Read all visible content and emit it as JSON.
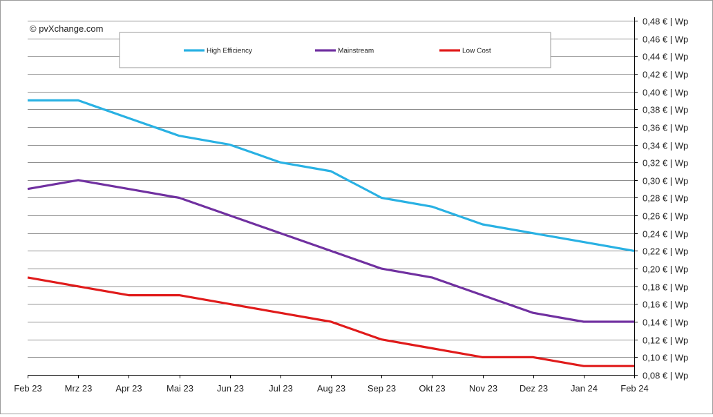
{
  "copyright": "© pvXchange.com",
  "chart_data": {
    "type": "line",
    "title": "",
    "xlabel": "",
    "ylabel": "",
    "categories": [
      "Feb 23",
      "Mrz 23",
      "Apr 23",
      "Mai 23",
      "Jun 23",
      "Jul 23",
      "Aug 23",
      "Sep 23",
      "Okt 23",
      "Nov 23",
      "Dez 23",
      "Jan 24",
      "Feb 24"
    ],
    "ylim": [
      0.08,
      0.48
    ],
    "yticks": [
      0.48,
      0.46,
      0.44,
      0.42,
      0.4,
      0.38,
      0.36,
      0.34,
      0.32,
      0.3,
      0.28,
      0.26,
      0.24,
      0.22,
      0.2,
      0.18,
      0.16,
      0.14,
      0.12,
      0.1,
      0.08
    ],
    "ytick_labels": [
      "0,48 € | Wp",
      "0,46 € | Wp",
      "0,44 € | Wp",
      "0,42 € | Wp",
      "0,40 € | Wp",
      "0,38 € | Wp",
      "0,36 € | Wp",
      "0,34 € | Wp",
      "0,32 € | Wp",
      "0,30 € | Wp",
      "0,28 € | Wp",
      "0,26 € | Wp",
      "0,24 € | Wp",
      "0,22 € | Wp",
      "0,20 € | Wp",
      "0,18 € | Wp",
      "0,16 € | Wp",
      "0,14 € | Wp",
      "0,12 € | Wp",
      "0,10 € | Wp",
      "0,08 € | Wp"
    ],
    "grid": true,
    "legend_position": "top-center",
    "series": [
      {
        "name": "High Efficiency",
        "color": "#29b1e3",
        "values": [
          0.39,
          0.39,
          0.37,
          0.35,
          0.34,
          0.32,
          0.31,
          0.28,
          0.27,
          0.25,
          0.24,
          0.23,
          0.22
        ]
      },
      {
        "name": "Mainstream",
        "color": "#7030a0",
        "values": [
          0.29,
          0.3,
          0.29,
          0.28,
          0.26,
          0.24,
          0.22,
          0.2,
          0.19,
          0.17,
          0.15,
          0.14,
          0.14
        ]
      },
      {
        "name": "Low Cost",
        "color": "#e01b1b",
        "values": [
          0.19,
          0.18,
          0.17,
          0.17,
          0.16,
          0.15,
          0.14,
          0.12,
          0.11,
          0.1,
          0.1,
          0.09,
          0.09
        ]
      }
    ]
  }
}
